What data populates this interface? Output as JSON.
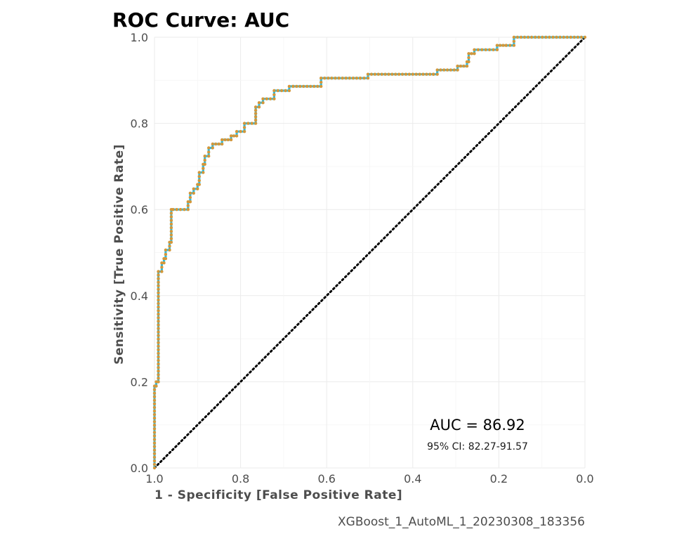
{
  "chart_data": {
    "type": "line",
    "title": "ROC Curve: AUC",
    "xlabel": "1 - Specificity [False Positive Rate]",
    "ylabel": "Sensitivity [True Positive Rate]",
    "xlim": [
      1.0,
      0.0
    ],
    "ylim": [
      0.0,
      1.0
    ],
    "x_reversed": true,
    "x_ticks": [
      "1.0",
      "0.8",
      "0.6",
      "0.4",
      "0.2",
      "0.0"
    ],
    "y_ticks": [
      "0.0",
      "0.2",
      "0.4",
      "0.6",
      "0.8",
      "1.0"
    ],
    "grid": true,
    "legend": "none",
    "annotations": {
      "auc": "AUC = 86.92",
      "ci": "95% CI: 82.27-91.57"
    },
    "caption": "XGBoost_1_AutoML_1_20230308_183356",
    "colors": {
      "curve_line": "#1fbfef",
      "points": "#d4973a",
      "diagonal": "#000000"
    },
    "series": [
      {
        "specificity": [
          1.0,
          1.0,
          0.996,
          0.996,
          0.991,
          0.991,
          0.983,
          0.983,
          0.978,
          0.978,
          0.974,
          0.974,
          0.965,
          0.965,
          0.961,
          0.961,
          0.957,
          0.957,
          0.922,
          0.922,
          0.917,
          0.917,
          0.909,
          0.909,
          0.9,
          0.9,
          0.896,
          0.896,
          0.887,
          0.887,
          0.883,
          0.883,
          0.874,
          0.874,
          0.865,
          0.865,
          0.843,
          0.843,
          0.822,
          0.822,
          0.809,
          0.809,
          0.791,
          0.791,
          0.765,
          0.765,
          0.757,
          0.757,
          0.748,
          0.748,
          0.722,
          0.722,
          0.687,
          0.687,
          0.678,
          0.678,
          0.613,
          0.613,
          0.522,
          0.522,
          0.504,
          0.504,
          0.352,
          0.352,
          0.343,
          0.343,
          0.296,
          0.296,
          0.274,
          0.274,
          0.27,
          0.27,
          0.257,
          0.257,
          0.204,
          0.204,
          0.183,
          0.183,
          0.165,
          0.165,
          0.0
        ],
        "sensitivity": [
          0.0,
          0.19,
          0.19,
          0.2,
          0.2,
          0.456,
          0.456,
          0.476,
          0.476,
          0.486,
          0.486,
          0.506,
          0.506,
          0.524,
          0.524,
          0.6,
          0.6,
          0.6,
          0.6,
          0.618,
          0.618,
          0.638,
          0.638,
          0.648,
          0.648,
          0.658,
          0.658,
          0.686,
          0.686,
          0.705,
          0.705,
          0.724,
          0.724,
          0.743,
          0.743,
          0.752,
          0.752,
          0.762,
          0.762,
          0.771,
          0.771,
          0.781,
          0.781,
          0.8,
          0.8,
          0.838,
          0.838,
          0.848,
          0.848,
          0.857,
          0.857,
          0.876,
          0.876,
          0.886,
          0.886,
          0.886,
          0.886,
          0.905,
          0.905,
          0.905,
          0.905,
          0.914,
          0.914,
          0.914,
          0.914,
          0.924,
          0.924,
          0.933,
          0.933,
          0.943,
          0.943,
          0.962,
          0.962,
          0.971,
          0.971,
          0.981,
          0.981,
          0.981,
          0.981,
          1.0,
          1.0
        ]
      }
    ]
  }
}
